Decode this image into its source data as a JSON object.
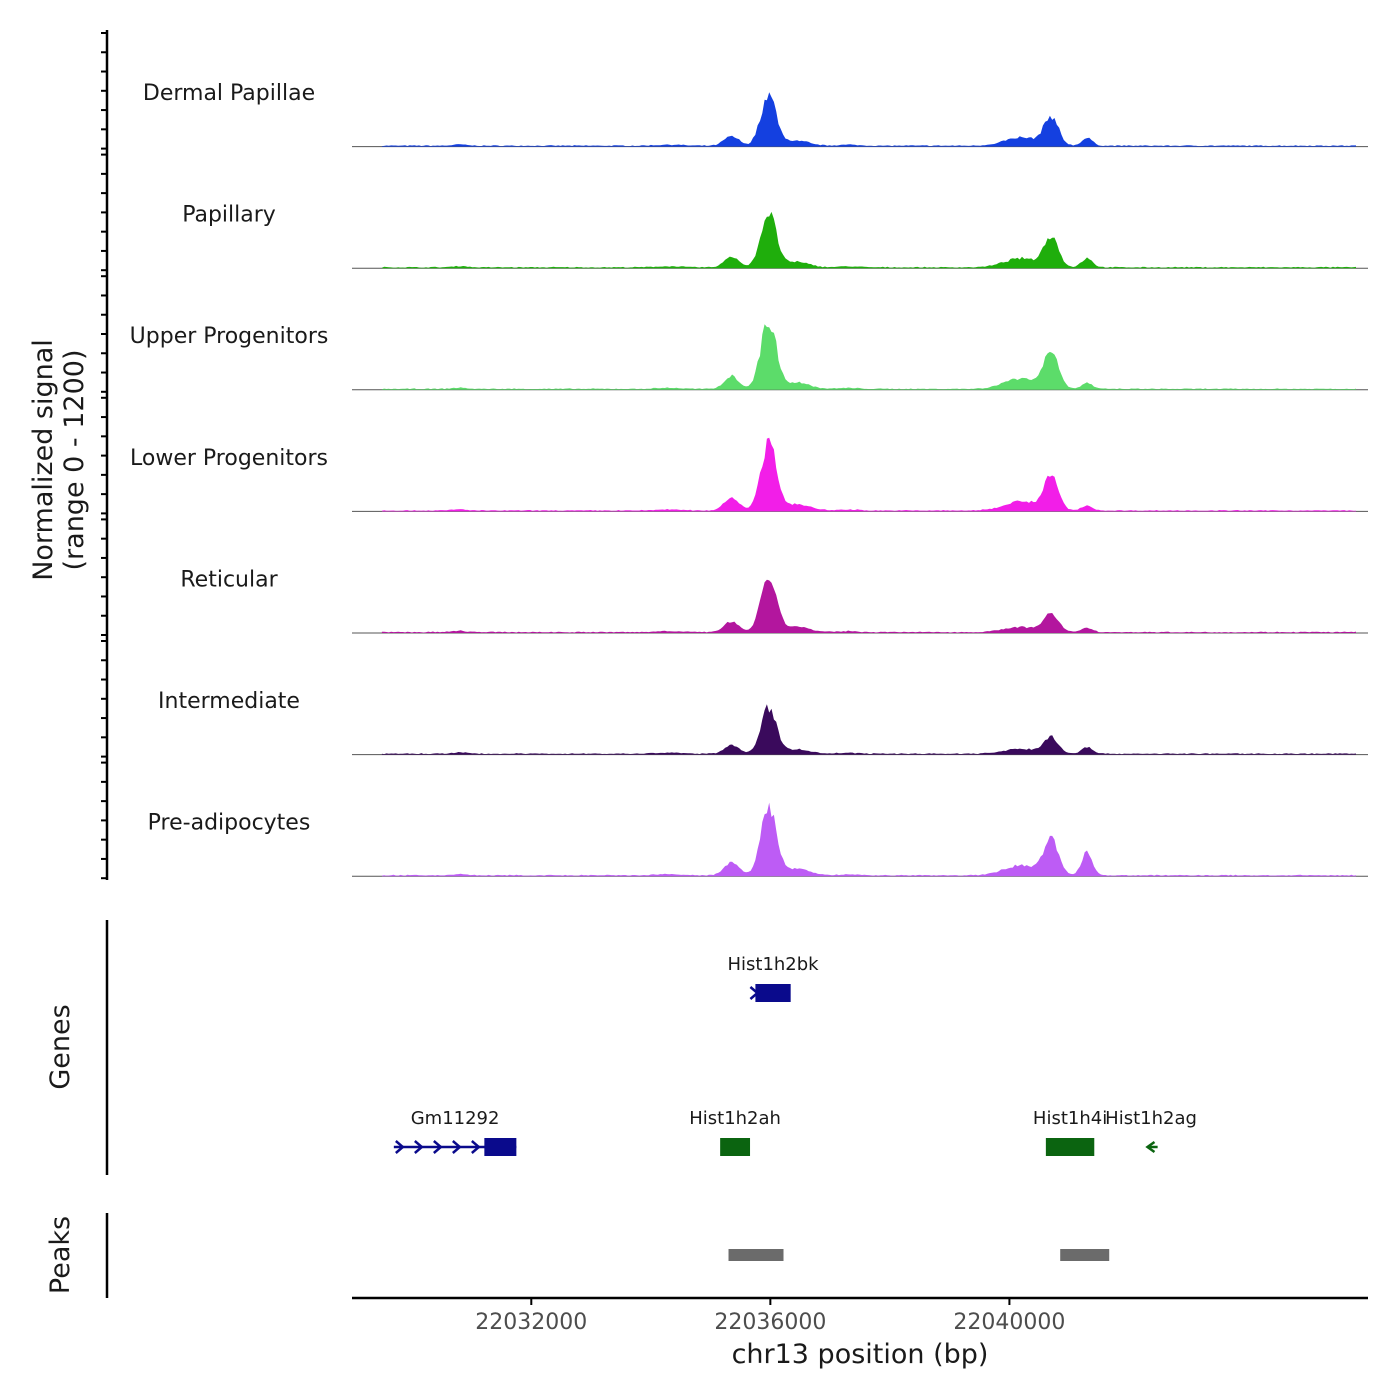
{
  "chart_data": {
    "type": "area",
    "title": "",
    "ylabel_line1": "Normalized signal",
    "ylabel_line2": "(range 0 - 1200)",
    "xlabel": "chr13 position (bp)",
    "ylim": [
      0,
      1200
    ],
    "xlim": [
      22029000,
      22046000
    ],
    "x_ticks": [
      "22032000",
      "22036000",
      "22040000"
    ],
    "x_tick_values": [
      22032000,
      22036000,
      22040000
    ],
    "track_labels": {
      "genes": "Genes",
      "peaks": "Peaks"
    },
    "series": [
      {
        "name": "Dermal Papillae",
        "color": "#1440e0",
        "peaks": [
          [
            22036000,
            900
          ],
          [
            22040700,
            480
          ],
          [
            22041300,
            120
          ]
        ]
      },
      {
        "name": "Papillary",
        "color": "#1fae0c",
        "peaks": [
          [
            22036000,
            960
          ],
          [
            22040700,
            520
          ],
          [
            22041300,
            150
          ]
        ]
      },
      {
        "name": "Upper Progenitors",
        "color": "#5cdc6a",
        "peaks": [
          [
            22036000,
            1200
          ],
          [
            22040700,
            630
          ],
          [
            22041300,
            100
          ]
        ]
      },
      {
        "name": "Lower Progenitors",
        "color": "#f21ee8",
        "peaks": [
          [
            22036000,
            1200
          ],
          [
            22040700,
            560
          ],
          [
            22041300,
            80
          ]
        ]
      },
      {
        "name": "Reticular",
        "color": "#b3169e",
        "peaks": [
          [
            22036000,
            1000
          ],
          [
            22040700,
            300
          ],
          [
            22041300,
            70
          ]
        ]
      },
      {
        "name": "Intermediate",
        "color": "#3a0a5c",
        "peaks": [
          [
            22036000,
            800
          ],
          [
            22040700,
            280
          ],
          [
            22041300,
            110
          ]
        ]
      },
      {
        "name": "Pre-adipocytes",
        "color": "#bd5cf5",
        "peaks": [
          [
            22036000,
            1200
          ],
          [
            22040700,
            600
          ],
          [
            22041300,
            380
          ]
        ]
      }
    ],
    "genes": [
      {
        "name": "Hist1h2bk",
        "start": 22035750,
        "end": 22036340,
        "strand": "+",
        "row": 1,
        "color": "#0a0a8c"
      },
      {
        "name": "Gm11292",
        "start": 22029700,
        "end": 22031750,
        "strand": "+",
        "row": 2,
        "color": "#0a0a8c"
      },
      {
        "name": "Hist1h2ah",
        "start": 22035160,
        "end": 22035660,
        "strand": "-",
        "row": 2,
        "color": "#0b6410"
      },
      {
        "name": "Hist1h4i",
        "start": 22040610,
        "end": 22041420,
        "strand": "-",
        "row": 2,
        "color": "#0b6410"
      },
      {
        "name": "Hist1h2ag",
        "start": 22042260,
        "end": 22042480,
        "strand": "-",
        "row": 2,
        "color": "#0b6410"
      }
    ],
    "peaks": [
      {
        "start": 22035300,
        "end": 22036220
      },
      {
        "start": 22040850,
        "end": 22041670
      }
    ]
  }
}
